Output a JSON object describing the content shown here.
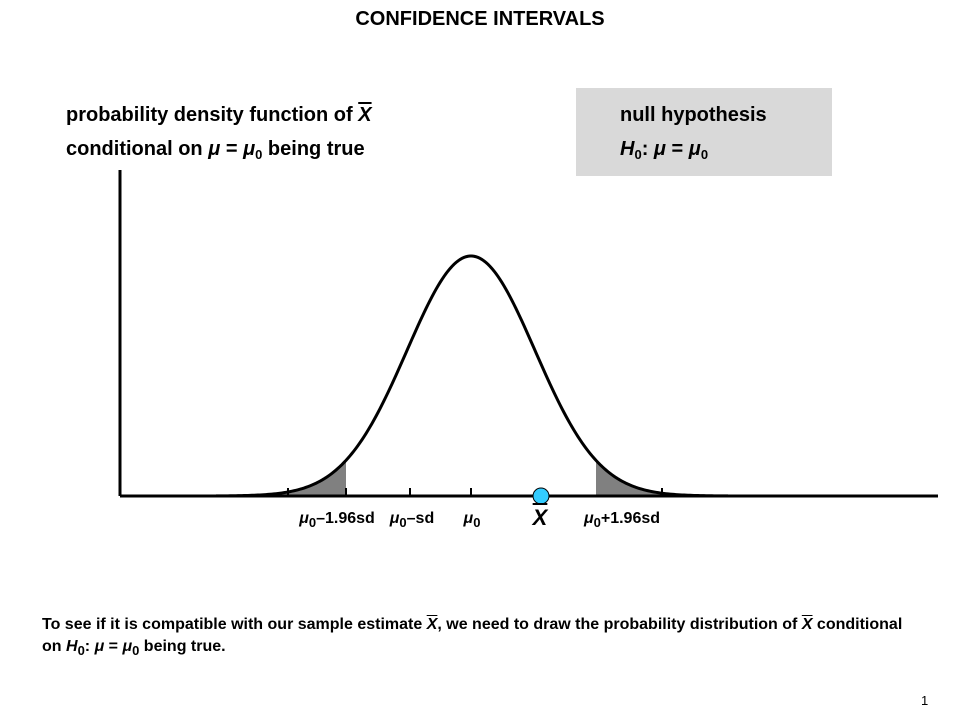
{
  "title": "CONFIDENCE INTERVALS",
  "pdf_label": {
    "line1_prefix": "probability density function of ",
    "line1_var": "X",
    "line2_a": "conditional on ",
    "line2_mu": "μ",
    "line2_eq": " = ",
    "line2_mu0": "μ",
    "line2_sub": "0",
    "line2_end": " being true"
  },
  "hypothesis": {
    "heading": "null hypothesis",
    "h": "H",
    "h_sub": "0",
    "colon": ": ",
    "mu": "μ",
    "eq": " = ",
    "mu0": "μ",
    "mu0_sub": "0",
    "box_color": "#d9d9d9"
  },
  "axis_labels": {
    "lower_196": {
      "mu": "μ",
      "sub": "0",
      "rest": "–1.96sd"
    },
    "lower_sd": {
      "mu": "μ",
      "sub": "0",
      "rest": "–sd"
    },
    "center": {
      "mu": "μ",
      "sub": "0"
    },
    "xbar": "X",
    "upper_196": {
      "mu": "μ",
      "sub": "0",
      "rest": "+1.96sd"
    }
  },
  "caption": {
    "p1": "To see if it is compatible with our sample estimate ",
    "x1": "X",
    "p2": ", we need to draw the probability distribution of ",
    "x2": "X",
    "p3": " conditional on ",
    "h": "H",
    "h_sub": "0",
    "p4": ": ",
    "mu": "μ",
    "p5": " = ",
    "mu0": "μ",
    "mu0_sub": "0",
    "p6": " being true."
  },
  "page_number": "1",
  "colors": {
    "tail_fill": "#808080",
    "marker_fill": "#33ccff",
    "curve": "#000000"
  }
}
